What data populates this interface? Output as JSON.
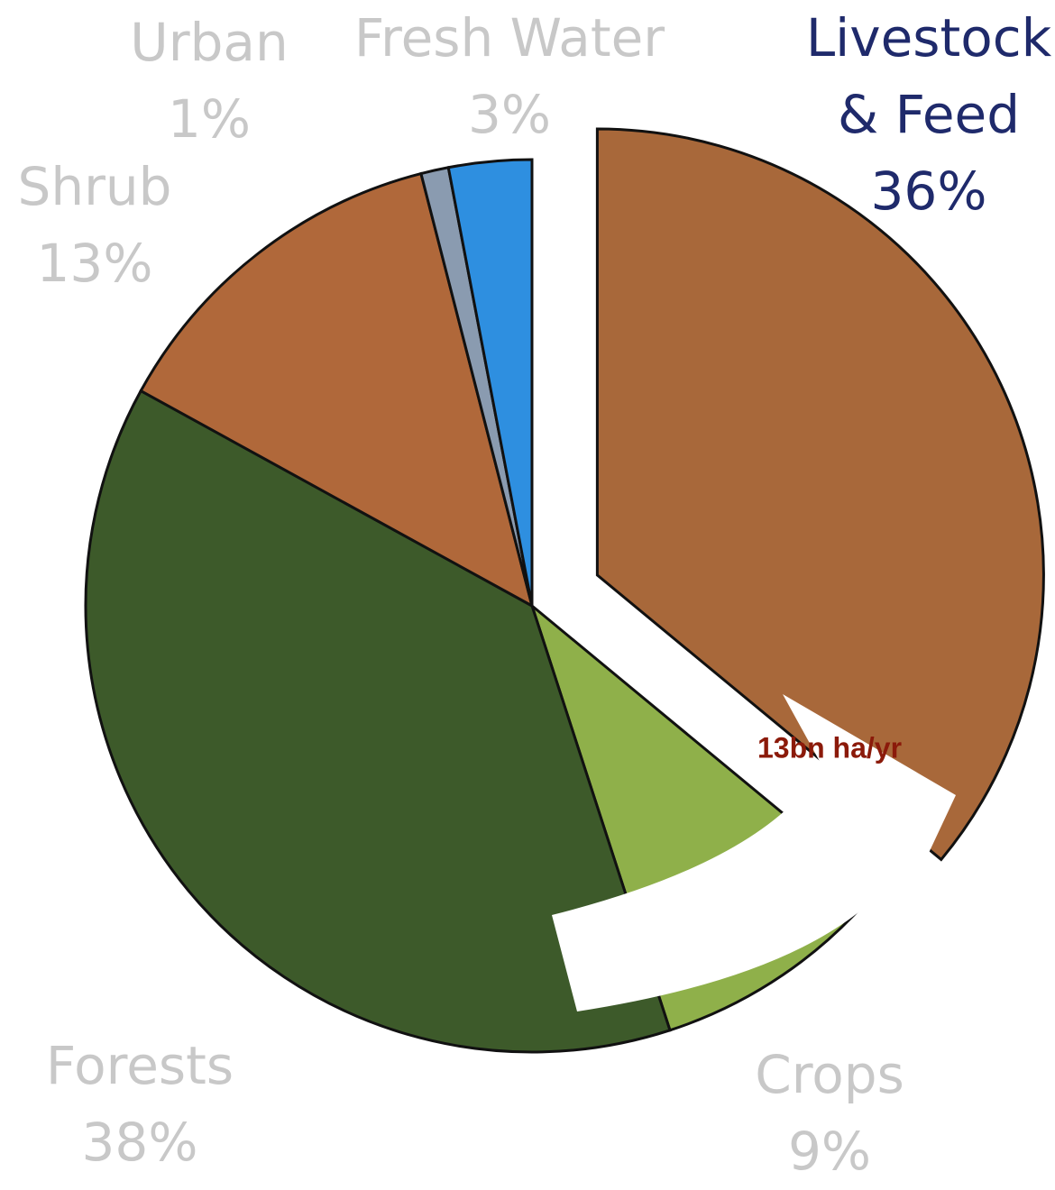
{
  "chart_data": {
    "type": "pie",
    "categories": [
      "Livestock & Feed",
      "Crops",
      "Forests",
      "Shrub",
      "Urban",
      "Fresh Water"
    ],
    "values": [
      36,
      9,
      38,
      13,
      1,
      3
    ],
    "value_labels": [
      "36%",
      "9%",
      "38%",
      "13%",
      "1%",
      "3%"
    ],
    "colors": [
      "#a8683a",
      "#8fb04a",
      "#3d5a2a",
      "#b0683a",
      "#8a9bb0",
      "#2e8fe0"
    ],
    "label_colors": [
      "#1f2a6b",
      "#c8c8c8",
      "#c8c8c8",
      "#c8c8c8",
      "#c8c8c8",
      "#c8c8c8"
    ],
    "exploded": [
      true,
      false,
      false,
      false,
      false,
      false
    ],
    "annotation": "13bn ha/yr",
    "annotation_color": "#8b1a0a"
  }
}
